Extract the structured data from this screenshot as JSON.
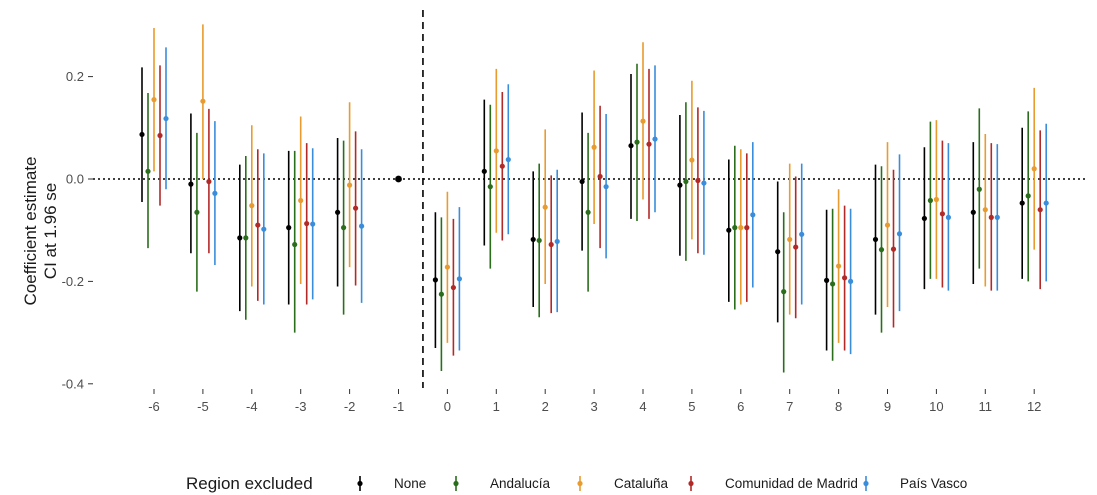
{
  "chart_data": {
    "type": "scatter",
    "subtype": "point-range (coefficient estimates with confidence intervals)",
    "title": "",
    "xlabel": "",
    "ylabel": [
      "Coefficient estimate",
      "CI at 1.96 se"
    ],
    "x_ticks": [
      -6,
      -5,
      -4,
      -3,
      -2,
      -1,
      0,
      1,
      2,
      3,
      4,
      5,
      6,
      7,
      8,
      9,
      10,
      11,
      12
    ],
    "y_ticks": [
      -0.4,
      -0.2,
      0.0,
      0.2
    ],
    "y_tick_labels": [
      "-0.4",
      "-0.2",
      "0.0",
      "0.2"
    ],
    "x_tick_labels": [
      "-6",
      "-5",
      "-4",
      "-3",
      "-2",
      "-1",
      "0",
      "1",
      "2",
      "3",
      "4",
      "5",
      "6",
      "7",
      "8",
      "9",
      "10",
      "11",
      "12"
    ],
    "ylim": [
      -0.41,
      0.31
    ],
    "xlim": [
      -6.5,
      12.5
    ],
    "grid": false,
    "reference_lines": [
      {
        "orientation": "horizontal",
        "value": 0.0,
        "style": "dotted"
      },
      {
        "orientation": "vertical",
        "value": -0.5,
        "style": "dashed"
      }
    ],
    "legend": {
      "title": "Region excluded",
      "position": "bottom",
      "entries": [
        "None",
        "Andalucía",
        "Cataluña",
        "Comunidad de Madrid",
        "País Vasco"
      ]
    },
    "reference_point": {
      "x": -1,
      "estimate": 0.0
    },
    "series": [
      {
        "name": "None",
        "color": "#000000",
        "x": [
          -6,
          -5,
          -4,
          -3,
          -2,
          0,
          1,
          2,
          3,
          4,
          5,
          6,
          7,
          8,
          9,
          10,
          11,
          12
        ],
        "estimate": [
          0.087,
          -0.01,
          -0.115,
          -0.095,
          -0.065,
          -0.197,
          0.015,
          -0.118,
          -0.005,
          0.065,
          -0.012,
          -0.1,
          -0.142,
          -0.198,
          -0.118,
          -0.077,
          -0.065,
          -0.047
        ],
        "lower": [
          -0.045,
          -0.145,
          -0.258,
          -0.245,
          -0.21,
          -0.33,
          -0.13,
          -0.25,
          -0.14,
          -0.078,
          -0.15,
          -0.24,
          -0.28,
          -0.335,
          -0.265,
          -0.215,
          -0.205,
          -0.195
        ],
        "upper": [
          0.218,
          0.128,
          0.028,
          0.055,
          0.08,
          -0.065,
          0.155,
          0.015,
          0.13,
          0.205,
          0.125,
          0.038,
          -0.005,
          -0.06,
          0.028,
          0.062,
          0.072,
          0.1
        ]
      },
      {
        "name": "Andalucía",
        "color": "#2a6e1c",
        "x": [
          -6,
          -5,
          -4,
          -3,
          -2,
          0,
          1,
          2,
          3,
          4,
          5,
          6,
          7,
          8,
          9,
          10,
          11,
          12
        ],
        "estimate": [
          0.015,
          -0.065,
          -0.115,
          -0.128,
          -0.095,
          -0.225,
          -0.015,
          -0.12,
          -0.065,
          0.072,
          -0.005,
          -0.095,
          -0.22,
          -0.205,
          -0.138,
          -0.042,
          -0.02,
          -0.033
        ],
        "lower": [
          -0.135,
          -0.22,
          -0.275,
          -0.3,
          -0.265,
          -0.375,
          -0.175,
          -0.27,
          -0.22,
          -0.082,
          -0.16,
          -0.255,
          -0.378,
          -0.355,
          -0.3,
          -0.195,
          -0.175,
          -0.2
        ],
        "upper": [
          0.168,
          0.09,
          0.045,
          0.055,
          0.075,
          -0.075,
          0.145,
          0.03,
          0.09,
          0.225,
          0.15,
          0.065,
          -0.065,
          -0.058,
          0.025,
          0.112,
          0.138,
          0.132
        ]
      },
      {
        "name": "Cataluña",
        "color": "#e89b2e",
        "x": [
          -6,
          -5,
          -4,
          -3,
          -2,
          0,
          1,
          2,
          3,
          4,
          5,
          6,
          7,
          8,
          9,
          10,
          11,
          12
        ],
        "estimate": [
          0.155,
          0.152,
          -0.052,
          -0.042,
          -0.012,
          -0.172,
          0.055,
          -0.055,
          0.062,
          0.113,
          0.037,
          -0.095,
          -0.118,
          -0.17,
          -0.09,
          -0.04,
          -0.06,
          0.02
        ],
        "lower": [
          0.015,
          0.0,
          -0.21,
          -0.205,
          -0.172,
          -0.32,
          -0.105,
          -0.205,
          -0.088,
          -0.04,
          -0.118,
          -0.245,
          -0.265,
          -0.32,
          -0.25,
          -0.195,
          -0.21,
          -0.138
        ],
        "upper": [
          0.295,
          0.302,
          0.105,
          0.122,
          0.15,
          -0.025,
          0.215,
          0.097,
          0.212,
          0.267,
          0.192,
          0.058,
          0.03,
          -0.02,
          0.072,
          0.115,
          0.088,
          0.178
        ]
      },
      {
        "name": "Comunidad de Madrid",
        "color": "#b22a28",
        "x": [
          -6,
          -5,
          -4,
          -3,
          -2,
          0,
          1,
          2,
          3,
          4,
          5,
          6,
          7,
          8,
          9,
          10,
          11,
          12
        ],
        "estimate": [
          0.085,
          -0.005,
          -0.09,
          -0.087,
          -0.057,
          -0.212,
          0.025,
          -0.128,
          0.005,
          0.068,
          -0.003,
          -0.095,
          -0.133,
          -0.193,
          -0.137,
          -0.068,
          -0.075,
          -0.06
        ],
        "lower": [
          -0.052,
          -0.145,
          -0.238,
          -0.245,
          -0.208,
          -0.345,
          -0.12,
          -0.262,
          -0.135,
          -0.078,
          -0.145,
          -0.24,
          -0.272,
          -0.335,
          -0.29,
          -0.212,
          -0.218,
          -0.215
        ],
        "upper": [
          0.222,
          0.137,
          0.058,
          0.07,
          0.093,
          -0.078,
          0.17,
          0.007,
          0.143,
          0.215,
          0.14,
          0.05,
          0.005,
          -0.052,
          0.018,
          0.075,
          0.07,
          0.095
        ]
      },
      {
        "name": "País Vasco",
        "color": "#3a8ddb",
        "x": [
          -6,
          -5,
          -4,
          -3,
          -2,
          0,
          1,
          2,
          3,
          4,
          5,
          6,
          7,
          8,
          9,
          10,
          11,
          12
        ],
        "estimate": [
          0.118,
          -0.028,
          -0.098,
          -0.088,
          -0.092,
          -0.195,
          0.038,
          -0.122,
          -0.015,
          0.078,
          -0.008,
          -0.07,
          -0.108,
          -0.2,
          -0.107,
          -0.075,
          -0.075,
          -0.047
        ],
        "lower": [
          -0.02,
          -0.168,
          -0.245,
          -0.235,
          -0.242,
          -0.335,
          -0.108,
          -0.26,
          -0.155,
          -0.065,
          -0.148,
          -0.212,
          -0.245,
          -0.342,
          -0.258,
          -0.218,
          -0.218,
          -0.2
        ],
        "upper": [
          0.257,
          0.113,
          0.05,
          0.06,
          0.058,
          -0.055,
          0.185,
          0.018,
          0.127,
          0.222,
          0.133,
          0.072,
          0.03,
          -0.058,
          0.048,
          0.07,
          0.068,
          0.108
        ]
      }
    ]
  }
}
